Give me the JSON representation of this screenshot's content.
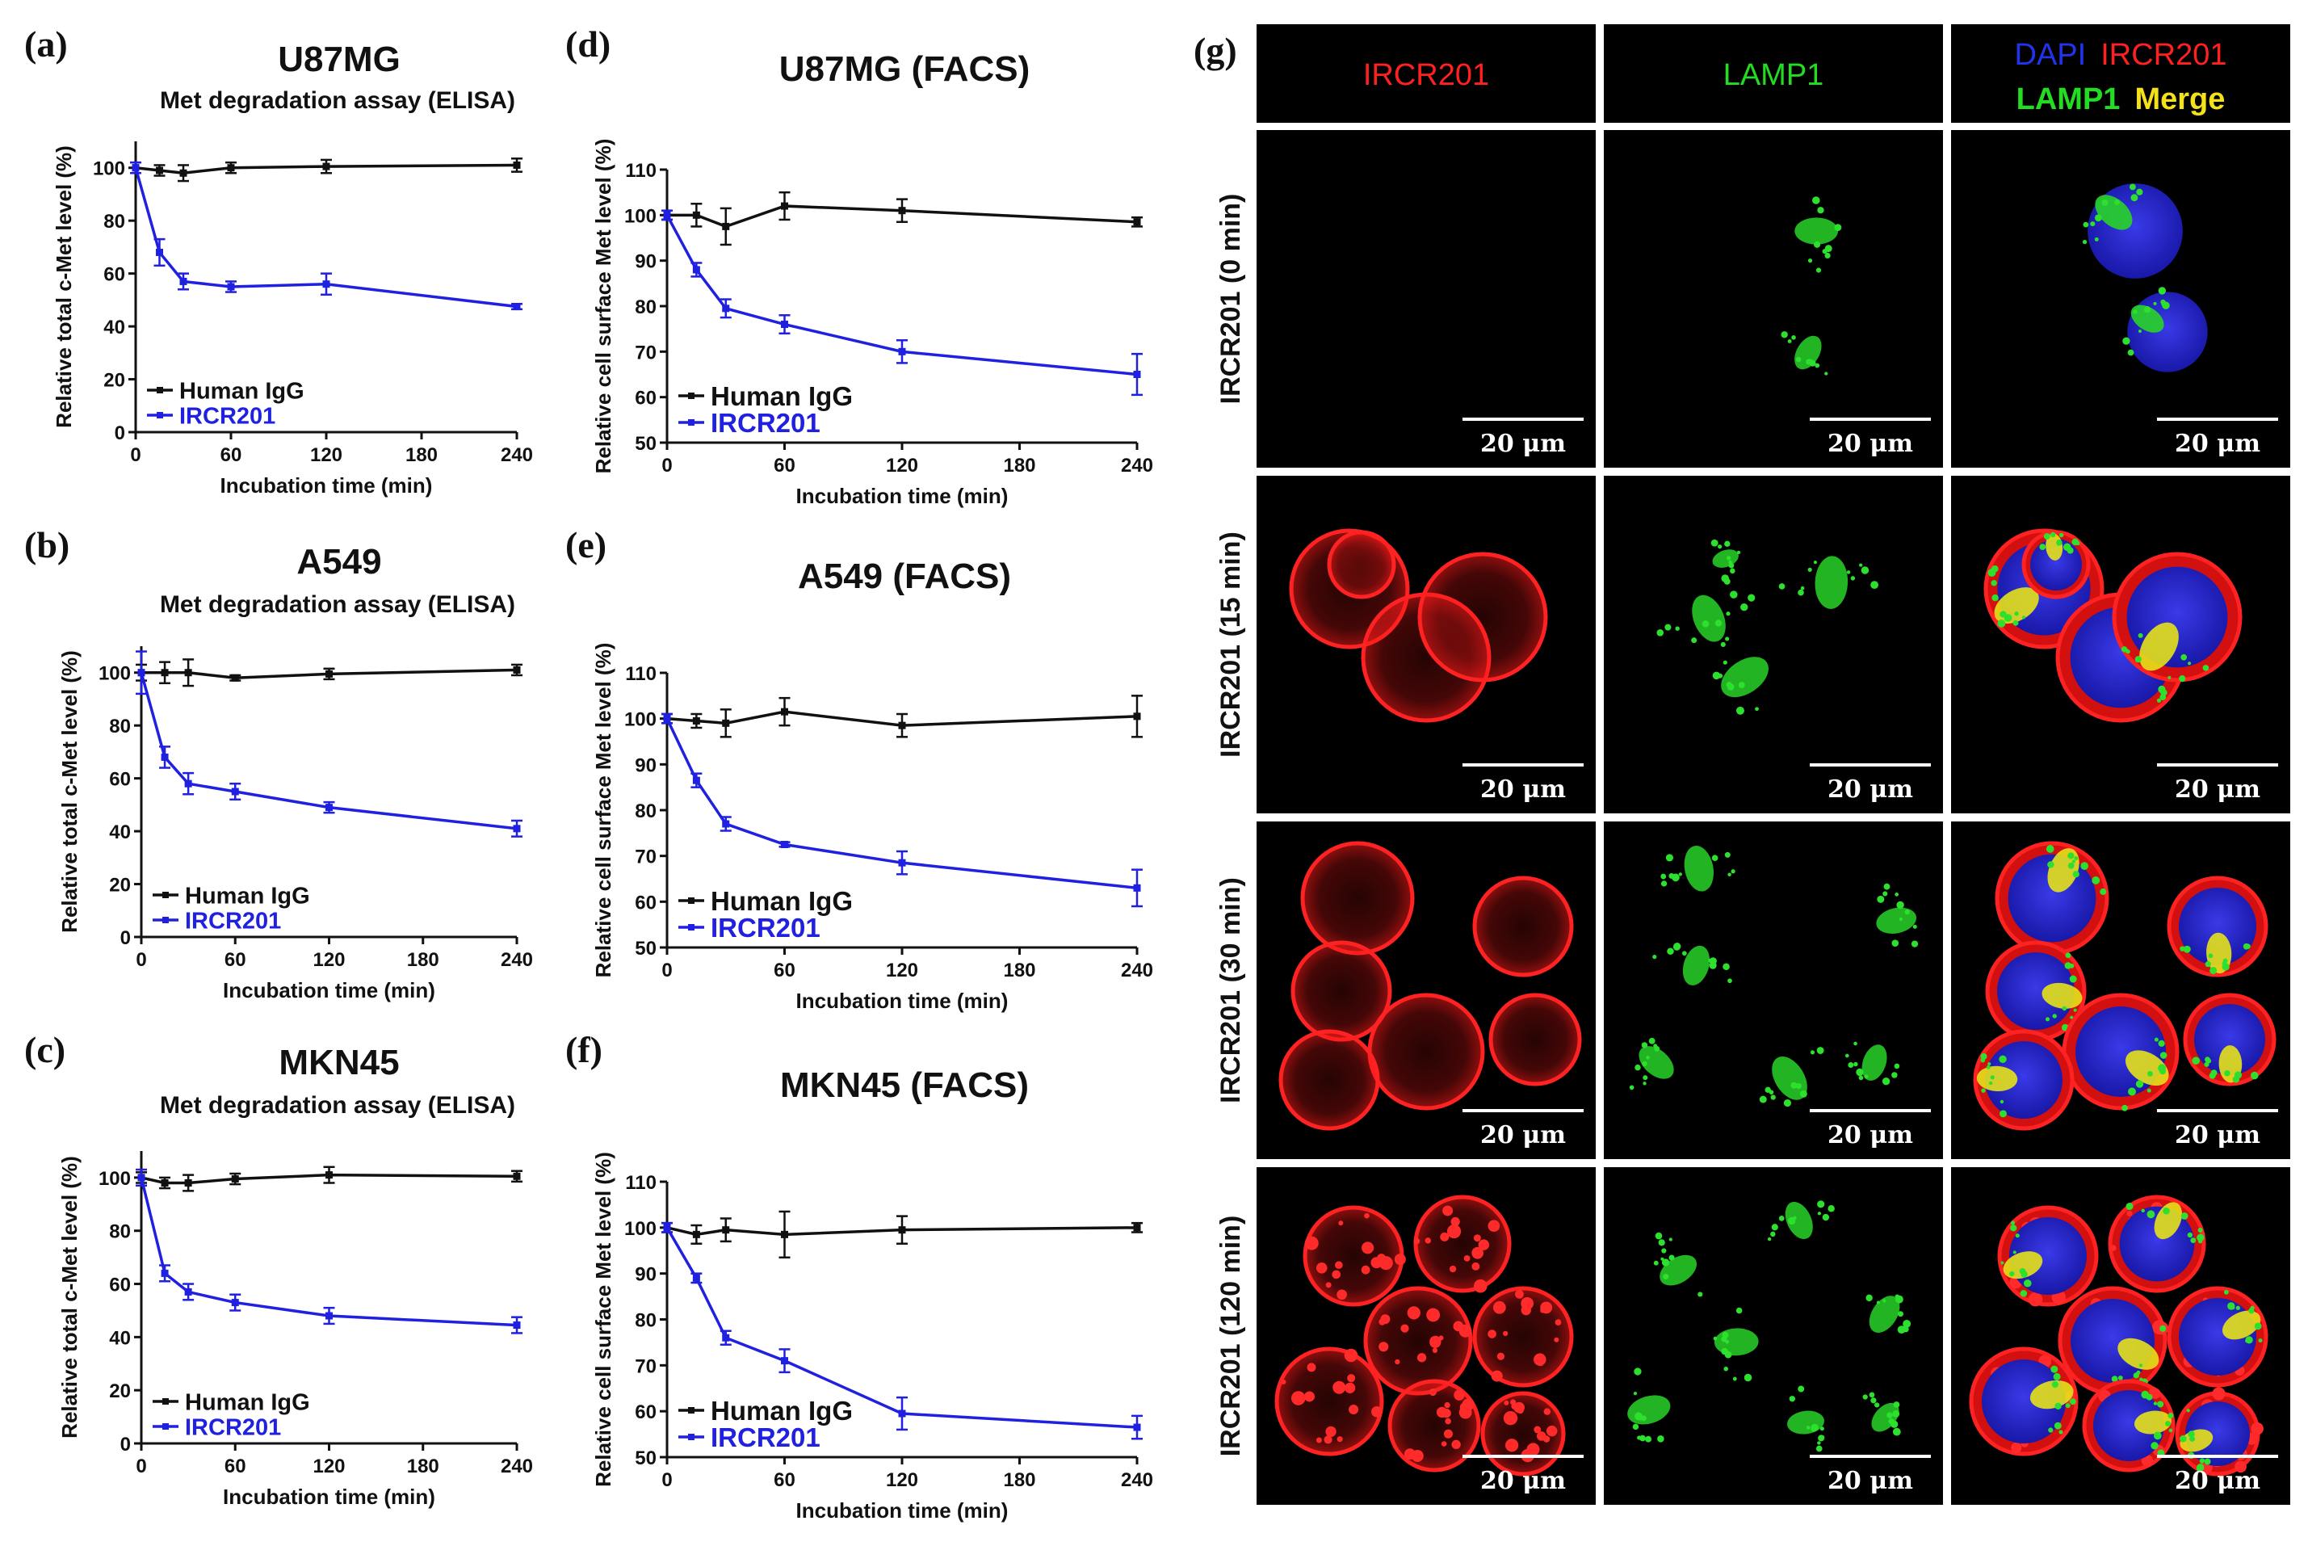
{
  "figure_label": "(g)",
  "chart_data": [
    {
      "type": "line",
      "panel_label": "(a)",
      "title": "U87MG",
      "subtitle": "Met degradation assay (ELISA)",
      "xlabel": "Incubation time (min)",
      "ylabel": "Relative total c-Met level (%)",
      "xlim": [
        0,
        240
      ],
      "ylim": [
        0,
        110
      ],
      "xticks": [
        0,
        60,
        120,
        180,
        240
      ],
      "yticks": [
        0,
        20,
        40,
        60,
        80,
        100
      ],
      "legend_position": "bottom-left",
      "series": [
        {
          "name": "Human IgG",
          "color": "#111111",
          "x": [
            0,
            15,
            30,
            60,
            120,
            240
          ],
          "y": [
            100,
            99,
            98,
            100,
            100.5,
            101
          ],
          "err": [
            2,
            2,
            3,
            2,
            2.5,
            2.5
          ]
        },
        {
          "name": "IRCR201",
          "color": "#2020e0",
          "x": [
            0,
            15,
            30,
            60,
            120,
            240
          ],
          "y": [
            100,
            68,
            57,
            55,
            56,
            47.5
          ],
          "err": [
            2,
            5,
            3,
            2,
            4,
            1
          ]
        }
      ]
    },
    {
      "type": "line",
      "panel_label": "(b)",
      "title": "A549",
      "subtitle": "Met degradation assay (ELISA)",
      "xlabel": "Incubation time (min)",
      "ylabel": "Relative total c-Met level (%)",
      "xlim": [
        0,
        240
      ],
      "ylim": [
        0,
        110
      ],
      "xticks": [
        0,
        60,
        120,
        180,
        240
      ],
      "yticks": [
        0,
        20,
        40,
        60,
        80,
        100
      ],
      "legend_position": "bottom-left",
      "series": [
        {
          "name": "Human IgG",
          "color": "#111111",
          "x": [
            0,
            15,
            30,
            60,
            120,
            240
          ],
          "y": [
            100,
            100,
            100,
            98,
            99.5,
            101
          ],
          "err": [
            3,
            4,
            5,
            1,
            2,
            2
          ]
        },
        {
          "name": "IRCR201",
          "color": "#2020e0",
          "x": [
            0,
            15,
            30,
            60,
            120,
            240
          ],
          "y": [
            100,
            68,
            58,
            55,
            49,
            41
          ],
          "err": [
            8,
            4,
            4,
            3,
            2,
            3
          ]
        }
      ]
    },
    {
      "type": "line",
      "panel_label": "(c)",
      "title": "MKN45",
      "subtitle": "Met degradation assay (ELISA)",
      "xlabel": "Incubation time (min)",
      "ylabel": "Relative total c-Met level (%)",
      "xlim": [
        0,
        240
      ],
      "ylim": [
        0,
        110
      ],
      "xticks": [
        0,
        60,
        120,
        180,
        240
      ],
      "yticks": [
        0,
        20,
        40,
        60,
        80,
        100
      ],
      "legend_position": "bottom-left",
      "series": [
        {
          "name": "Human IgG",
          "color": "#111111",
          "x": [
            0,
            15,
            30,
            60,
            120,
            240
          ],
          "y": [
            100,
            98,
            98,
            99.5,
            101,
            100.5
          ],
          "err": [
            2,
            2,
            3,
            2,
            3,
            2
          ]
        },
        {
          "name": "IRCR201",
          "color": "#2020e0",
          "x": [
            0,
            15,
            30,
            60,
            120,
            240
          ],
          "y": [
            100,
            64,
            57,
            53,
            48,
            44.5
          ],
          "err": [
            3,
            3,
            3,
            3,
            3,
            3
          ]
        }
      ]
    },
    {
      "type": "line",
      "panel_label": "(d)",
      "title": "U87MG (FACS)",
      "xlabel": "Incubation time (min)",
      "ylabel": "Relative cell surface Met level (%)",
      "xlim": [
        0,
        240
      ],
      "ylim": [
        50,
        110
      ],
      "xticks": [
        0,
        60,
        120,
        180,
        240
      ],
      "yticks": [
        50,
        60,
        70,
        80,
        90,
        100,
        110
      ],
      "legend_position": "bottom-left",
      "series": [
        {
          "name": "Human IgG",
          "color": "#111111",
          "x": [
            0,
            15,
            30,
            60,
            120,
            240
          ],
          "y": [
            100,
            100,
            97.5,
            102,
            101,
            98.5
          ],
          "err": [
            1,
            2.5,
            4,
            3,
            2.5,
            1
          ]
        },
        {
          "name": "IRCR201",
          "color": "#2020e0",
          "x": [
            0,
            15,
            30,
            60,
            120,
            240
          ],
          "y": [
            100,
            88,
            79.5,
            76,
            70,
            65
          ],
          "err": [
            1,
            1.5,
            2,
            2,
            2.5,
            4.5
          ]
        }
      ]
    },
    {
      "type": "line",
      "panel_label": "(e)",
      "title": "A549 (FACS)",
      "xlabel": "Incubation time (min)",
      "ylabel": "Relative cell surface Met level (%)",
      "xlim": [
        0,
        240
      ],
      "ylim": [
        50,
        110
      ],
      "xticks": [
        0,
        60,
        120,
        180,
        240
      ],
      "yticks": [
        50,
        60,
        70,
        80,
        90,
        100,
        110
      ],
      "legend_position": "bottom-left",
      "series": [
        {
          "name": "Human IgG",
          "color": "#111111",
          "x": [
            0,
            15,
            30,
            60,
            120,
            240
          ],
          "y": [
            100,
            99.5,
            99,
            101.5,
            98.5,
            100.5
          ],
          "err": [
            1,
            1.5,
            3,
            3,
            2.5,
            4.5
          ]
        },
        {
          "name": "IRCR201",
          "color": "#2020e0",
          "x": [
            0,
            15,
            30,
            60,
            120,
            240
          ],
          "y": [
            100,
            86.5,
            77,
            72.5,
            68.5,
            63
          ],
          "err": [
            1,
            1.5,
            1.5,
            0.5,
            2.5,
            4
          ]
        }
      ]
    },
    {
      "type": "line",
      "panel_label": "(f)",
      "title": "MKN45 (FACS)",
      "xlabel": "Incubation time (min)",
      "ylabel": "Relative cell surface Met level (%)",
      "xlim": [
        0,
        240
      ],
      "ylim": [
        50,
        110
      ],
      "xticks": [
        0,
        60,
        120,
        180,
        240
      ],
      "yticks": [
        50,
        60,
        70,
        80,
        90,
        100,
        110
      ],
      "legend_position": "bottom-left",
      "series": [
        {
          "name": "Human IgG",
          "color": "#111111",
          "x": [
            0,
            15,
            30,
            60,
            120,
            240
          ],
          "y": [
            100,
            98.5,
            99.5,
            98.5,
            99.5,
            100
          ],
          "err": [
            1,
            2,
            2.5,
            5,
            3,
            1
          ]
        },
        {
          "name": "IRCR201",
          "color": "#2020e0",
          "x": [
            0,
            15,
            30,
            60,
            120,
            240
          ],
          "y": [
            100,
            89,
            76,
            71,
            59.5,
            56.5
          ],
          "err": [
            1,
            1,
            1.5,
            2.5,
            3.5,
            2.5
          ]
        }
      ]
    }
  ],
  "microscopy": {
    "channels": [
      {
        "parts": [
          {
            "text": "IRCR201",
            "color": "#ff2020"
          }
        ]
      },
      {
        "parts": [
          {
            "text": "LAMP1",
            "color": "#22dd22"
          }
        ]
      },
      {
        "parts": [
          {
            "text": "DAPI",
            "color": "#2233ee"
          },
          {
            "text": "IRCR201",
            "color": "#ff2020"
          }
        ],
        "parts2": [
          {
            "text": "LAMP1",
            "color": "#22dd22"
          },
          {
            "text": "Merge",
            "color": "#f5e11a"
          }
        ]
      }
    ],
    "rows": [
      "IRCR201 (0 min)",
      "IRCR201 (15 min)",
      "IRCR201 (30 min)",
      "IRCR201 (120 min)"
    ],
    "scale_bar": "20 μm"
  }
}
